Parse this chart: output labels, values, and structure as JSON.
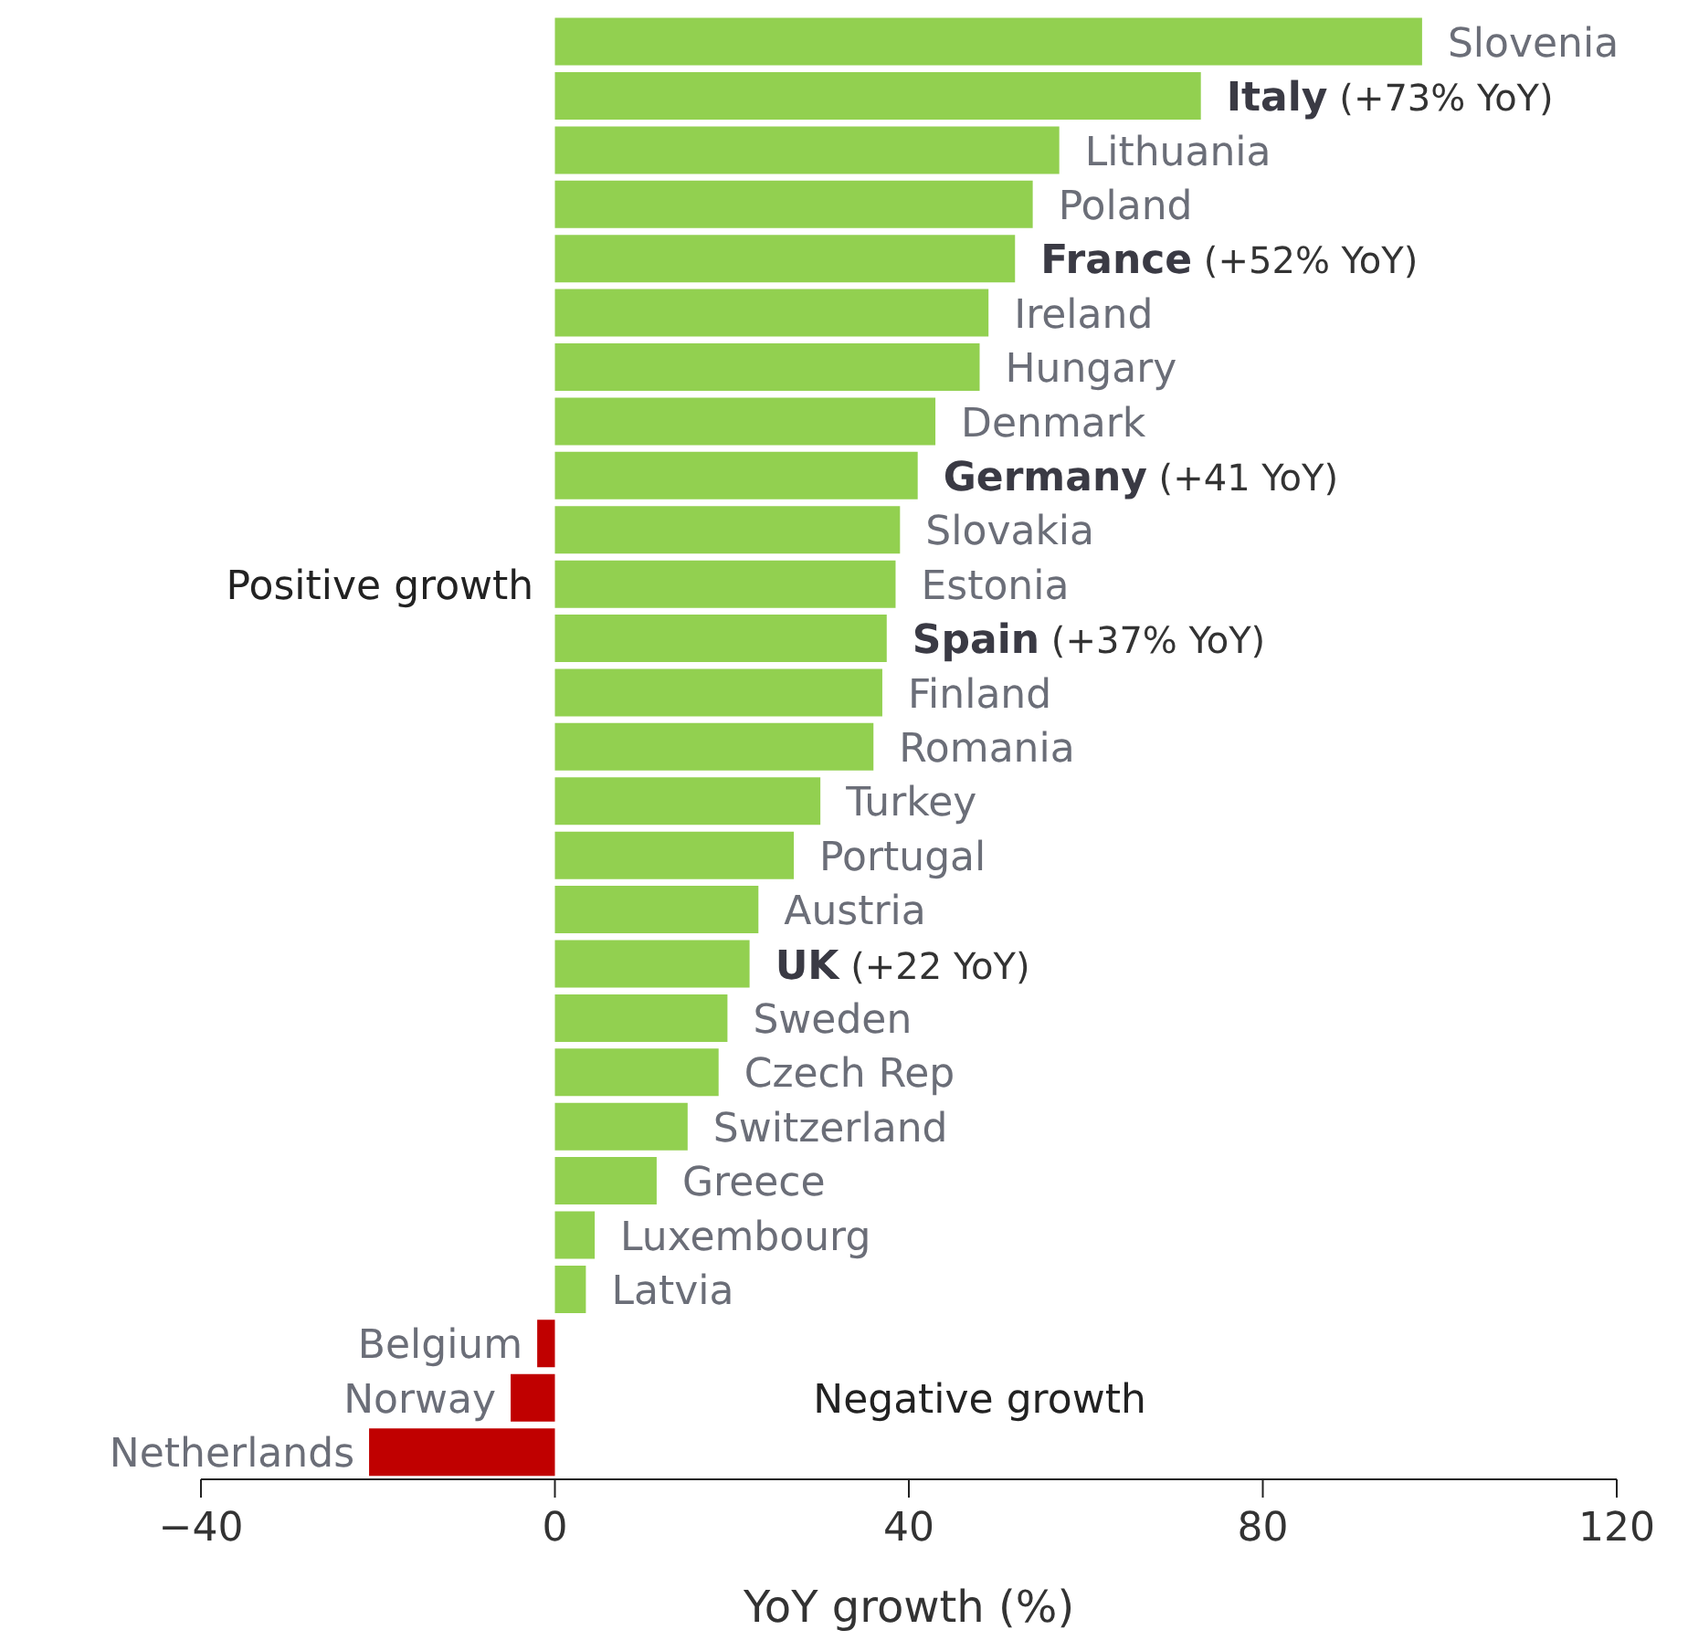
{
  "chart_data": {
    "type": "bar",
    "orientation": "horizontal",
    "xlabel": "YoY growth (%)",
    "categories": [
      "Slovenia",
      "Italy (+73% YoY)",
      "Lithuania",
      "Poland",
      "France (+52% YoY)",
      "Ireland",
      "Hungary",
      "Denmark",
      "Germany (+41 YoY)",
      "Slovakia",
      "Estonia",
      "Spain (+37% YoY)",
      "Finland",
      "Romania",
      "Turkey",
      "Portugal",
      "Austria",
      "UK (+22 YoY)",
      "Sweden",
      "Czech Rep",
      "Switzerland",
      "Greece",
      "Luxembourg",
      "Latvia",
      "Belgium",
      "Norway",
      "Netherlands"
    ],
    "values": [
      98,
      73,
      57,
      54,
      52,
      49,
      48,
      43,
      41,
      39,
      38.5,
      37.5,
      37,
      36,
      30,
      27,
      23,
      22,
      19.5,
      18.5,
      15,
      11.5,
      4.5,
      3.5,
      -2,
      -5,
      -21
    ],
    "colors": [
      "#92d050",
      "#92d050",
      "#92d050",
      "#92d050",
      "#92d050",
      "#92d050",
      "#92d050",
      "#92d050",
      "#92d050",
      "#92d050",
      "#92d050",
      "#92d050",
      "#92d050",
      "#92d050",
      "#92d050",
      "#92d050",
      "#92d050",
      "#92d050",
      "#92d050",
      "#92d050",
      "#92d050",
      "#92d050",
      "#92d050",
      "#92d050",
      "#c00000",
      "#c00000",
      "#c00000"
    ],
    "xlim": [
      -40,
      120
    ],
    "xticks": [
      -40,
      0,
      40,
      80,
      120
    ],
    "tick_labels": "x",
    "annotations": [
      "Positive growth",
      "Negative growth"
    ]
  }
}
